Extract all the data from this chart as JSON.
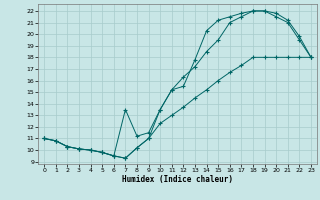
{
  "xlabel": "Humidex (Indice chaleur)",
  "bg_color": "#c8e6e6",
  "grid_color": "#a8cccc",
  "line_color": "#006666",
  "xlim": [
    -0.5,
    23.5
  ],
  "ylim": [
    8.8,
    22.6
  ],
  "xticks": [
    0,
    1,
    2,
    3,
    4,
    5,
    6,
    7,
    8,
    9,
    10,
    11,
    12,
    13,
    14,
    15,
    16,
    17,
    18,
    19,
    20,
    21,
    22,
    23
  ],
  "yticks": [
    9,
    10,
    11,
    12,
    13,
    14,
    15,
    16,
    17,
    18,
    19,
    20,
    21,
    22
  ],
  "line1_x": [
    0,
    1,
    2,
    3,
    4,
    5,
    6,
    7,
    8,
    9,
    10,
    11,
    12,
    13,
    14,
    15,
    16,
    17,
    18,
    19,
    20,
    21,
    22,
    23
  ],
  "line1_y": [
    11.0,
    10.8,
    10.3,
    10.1,
    10.0,
    9.8,
    9.5,
    9.3,
    10.2,
    11.0,
    12.3,
    13.0,
    13.7,
    14.5,
    15.2,
    16.0,
    16.7,
    17.3,
    18.0,
    18.0,
    18.0,
    18.0,
    18.0,
    18.0
  ],
  "line2_x": [
    0,
    1,
    2,
    3,
    4,
    5,
    6,
    7,
    8,
    9,
    10,
    11,
    12,
    13,
    14,
    15,
    16,
    17,
    18,
    19,
    20,
    21,
    22,
    23
  ],
  "line2_y": [
    11.0,
    10.8,
    10.3,
    10.1,
    10.0,
    9.8,
    9.5,
    9.3,
    10.2,
    11.0,
    13.5,
    15.2,
    16.3,
    17.2,
    18.5,
    19.5,
    21.0,
    21.5,
    22.0,
    22.0,
    21.5,
    21.0,
    19.5,
    18.0
  ],
  "line3_x": [
    0,
    1,
    2,
    3,
    4,
    5,
    6,
    7,
    8,
    9,
    10,
    11,
    12,
    13,
    14,
    15,
    16,
    17,
    18,
    19,
    20,
    21,
    22,
    23
  ],
  "line3_y": [
    11.0,
    10.8,
    10.3,
    10.1,
    10.0,
    9.8,
    9.5,
    13.5,
    11.2,
    11.5,
    13.5,
    15.2,
    15.5,
    17.8,
    20.3,
    21.2,
    21.5,
    21.8,
    22.0,
    22.0,
    21.8,
    21.2,
    19.8,
    18.0
  ]
}
